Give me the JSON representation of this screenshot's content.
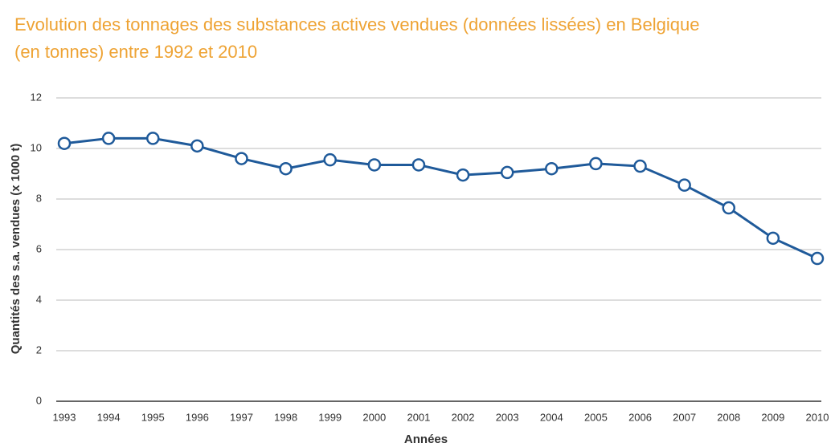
{
  "chart_data": {
    "type": "line",
    "title": [
      "Evolution des tonnages des substances actives vendues (données lissées) en Belgique",
      "(en tonnes) entre 1992 et 2010"
    ],
    "x_label": "Années",
    "y_label": "Quantités des s.a. vendues (x 1000 t)",
    "categories": [
      "1993",
      "1994",
      "1995",
      "1996",
      "1997",
      "1998",
      "1999",
      "2000",
      "2001",
      "2002",
      "2003",
      "2004",
      "2005",
      "2006",
      "2007",
      "2008",
      "2009",
      "2010"
    ],
    "values": [
      10.2,
      10.4,
      10.4,
      10.1,
      9.6,
      9.2,
      9.55,
      9.35,
      9.35,
      8.95,
      9.05,
      9.2,
      9.4,
      9.3,
      8.55,
      7.65,
      6.45,
      5.65
    ],
    "color": "#1f5a9a",
    "ylim": [
      0,
      12
    ],
    "yticks": [
      0,
      2,
      4,
      6,
      8,
      10,
      12
    ],
    "grid": true
  }
}
